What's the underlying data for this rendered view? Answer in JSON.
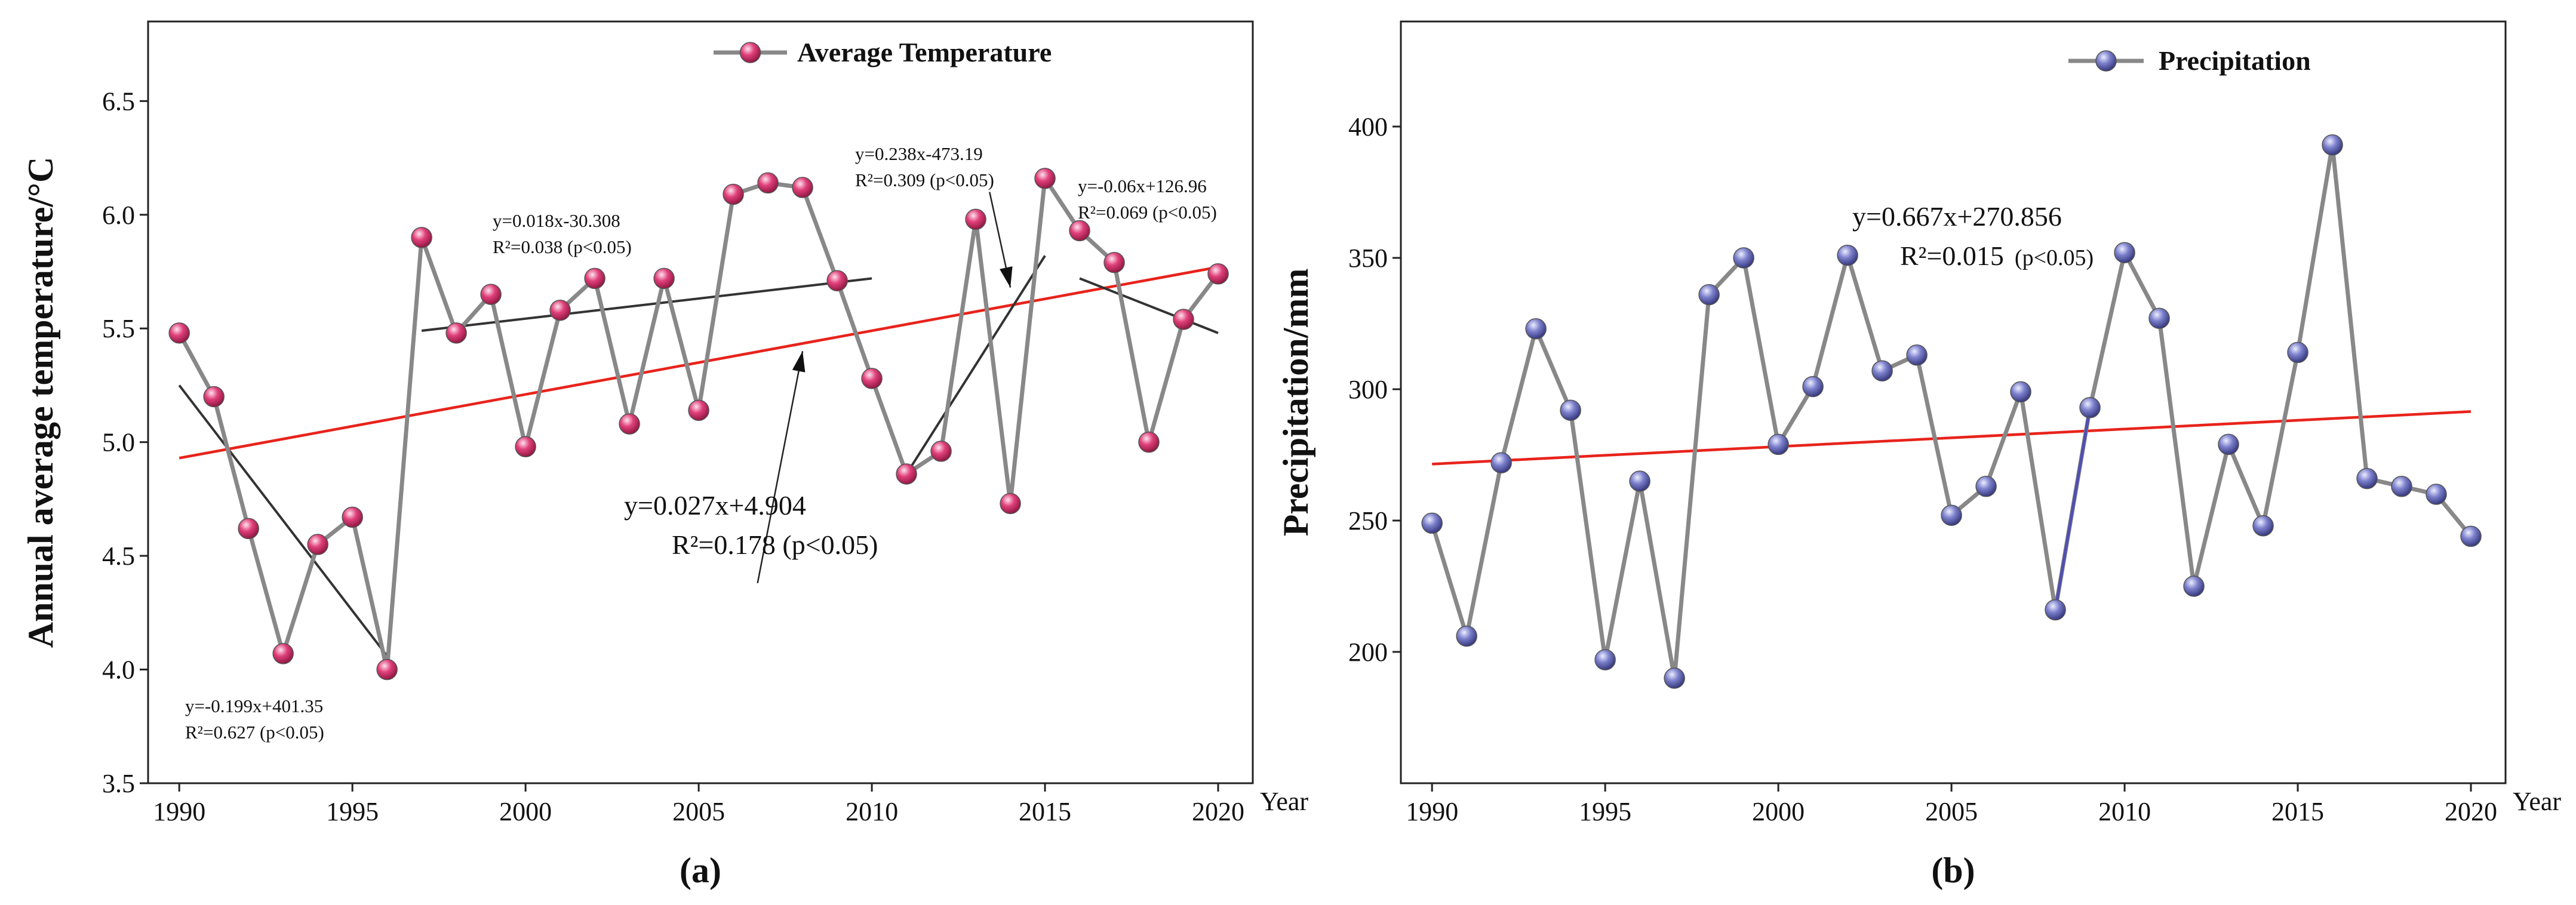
{
  "chart_data": [
    {
      "type": "line",
      "panel_label": "(a)",
      "ylabel": "Annual average temperature/°C",
      "xlabel": "Year",
      "xlim": [
        1989.1,
        2021
      ],
      "ylim": [
        3.5,
        6.85
      ],
      "xticks": [
        1990,
        1995,
        2000,
        2005,
        2010,
        2015,
        2020
      ],
      "yticks": [
        3.5,
        4.0,
        4.5,
        5.0,
        5.5,
        6.0,
        6.5
      ],
      "ytick_labels": [
        "3.5",
        "4.0",
        "4.5",
        "5.0",
        "5.5",
        "6.0",
        "6.5"
      ],
      "legend": {
        "label": "Average Temperature",
        "placement": "top-center"
      },
      "marker_color": "#d6336c",
      "line_color": "#888888",
      "series": [
        {
          "name": "Average Temperature",
          "x": [
            1990,
            1991,
            1992,
            1993,
            1994,
            1995,
            1996,
            1997,
            1998,
            1999,
            2000,
            2001,
            2002,
            2003,
            2004,
            2005,
            2006,
            2007,
            2008,
            2009,
            2010,
            2011,
            2012,
            2013,
            2014,
            2015,
            2016,
            2017,
            2018,
            2019,
            2020
          ],
          "values": [
            5.48,
            5.2,
            4.62,
            4.07,
            4.55,
            4.67,
            4.0,
            5.9,
            5.48,
            5.65,
            4.98,
            5.58,
            5.72,
            5.08,
            5.72,
            5.14,
            6.09,
            6.14,
            6.12,
            5.71,
            5.28,
            4.86,
            4.96,
            5.98,
            4.73,
            6.16,
            5.93,
            5.79,
            5.0,
            5.54,
            5.74
          ]
        }
      ],
      "trendlines": [
        {
          "name": "overall",
          "color": "#e8231b",
          "x": [
            1990,
            2020
          ],
          "y": [
            4.93,
            5.77
          ]
        },
        {
          "name": "1990-1996",
          "color": "#333333",
          "x": [
            1990,
            1996
          ],
          "y": [
            5.25,
            4.06
          ]
        },
        {
          "name": "1997-2010",
          "color": "#333333",
          "x": [
            1997,
            2010
          ],
          "y": [
            5.49,
            5.72
          ]
        },
        {
          "name": "2011-2015",
          "color": "#333333",
          "x": [
            2011,
            2015
          ],
          "y": [
            4.86,
            5.82
          ]
        },
        {
          "name": "2016-2020",
          "color": "#333333",
          "x": [
            2016,
            2020
          ],
          "y": [
            5.72,
            5.48
          ]
        }
      ],
      "annotations": [
        {
          "line1": "y=-0.199x+401.35",
          "line2": "R²=0.627 (p<0.05)",
          "size": "small",
          "x": 1990.2,
          "y": 3.78
        },
        {
          "line1": "y=0.018x-30.308",
          "line2": "R²=0.038 (p<0.05)",
          "size": "small",
          "x": 1999.1,
          "y": 6.02
        },
        {
          "line1": "y=0.238x-473.19",
          "line2": "R²=0.309 (p<0.05)",
          "size": "small",
          "x": 2009.8,
          "y": 6.27
        },
        {
          "line1": "y=-0.06x+126.96",
          "line2": "R²=0.069 (p<0.05)",
          "size": "small",
          "x": 2016.3,
          "y": 6.13
        },
        {
          "line1": "y=0.027x+4.904",
          "line2": "R²=0.178 (p<0.05)",
          "size": "big",
          "x": 2000.3,
          "y": 4.68
        }
      ],
      "arrows": [
        {
          "from": [
            2006.7,
            4.38
          ],
          "to": [
            2008.0,
            5.4
          ]
        },
        {
          "from": [
            2013.4,
            6.1
          ],
          "to": [
            2014.0,
            5.68
          ]
        }
      ]
    },
    {
      "type": "line",
      "panel_label": "(b)",
      "ylabel": "Precipitation/mm",
      "xlabel": "Year",
      "xlim": [
        1989.1,
        2021
      ],
      "ylim": [
        150,
        440
      ],
      "xticks": [
        1990,
        1995,
        2000,
        2005,
        2010,
        2015,
        2020
      ],
      "yticks": [
        200,
        250,
        300,
        350,
        400
      ],
      "ytick_labels": [
        "200",
        "250",
        "300",
        "350",
        "400"
      ],
      "legend": {
        "label": "Precipitation",
        "placement": "top-right"
      },
      "marker_color": "#6f73bf",
      "line_color": "#888888",
      "series": [
        {
          "name": "Precipitation",
          "x": [
            1990,
            1991,
            1992,
            1993,
            1994,
            1995,
            1996,
            1997,
            1998,
            1999,
            2000,
            2001,
            2002,
            2003,
            2004,
            2005,
            2006,
            2007,
            2008,
            2009,
            2010,
            2011,
            2012,
            2013,
            2014,
            2015,
            2016,
            2017,
            2018,
            2019,
            2020
          ],
          "values": [
            249,
            206,
            272,
            323,
            292,
            197,
            265,
            190,
            336,
            350,
            279,
            301,
            351,
            307,
            313,
            252,
            263,
            299,
            216,
            293,
            352,
            327,
            225,
            279,
            248,
            314,
            393,
            266,
            263,
            260,
            244
          ]
        }
      ],
      "highlight_segment": {
        "from_year": 2008,
        "to_year": 2009,
        "color": "#5050b0"
      },
      "trendlines": [
        {
          "name": "overall",
          "color": "#e8231b",
          "x": [
            1990,
            2020
          ],
          "y": [
            271.5,
            291.5
          ]
        }
      ],
      "annotations": [
        {
          "line1": "y=0.667x+270.856",
          "line2": "R²=0.015",
          "line2_suffix": "(p<0.05)",
          "size": "big",
          "x": 2002.4,
          "y": 353
        }
      ]
    }
  ]
}
